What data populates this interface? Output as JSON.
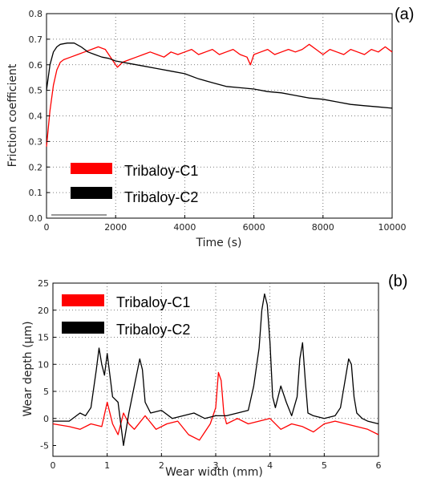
{
  "chart_data": [
    {
      "type": "line",
      "panel_label": "(a)",
      "xlabel": "Time (s)",
      "ylabel": "Friction coefficient",
      "xlim": [
        0,
        10000
      ],
      "ylim": [
        0,
        0.8
      ],
      "xticks": [
        0,
        2000,
        4000,
        6000,
        8000,
        10000
      ],
      "xtick_labels": [
        "0",
        "2000",
        "4000",
        "6000",
        "8000",
        "10000"
      ],
      "yticks": [
        0,
        0.1,
        0.2,
        0.3,
        0.4,
        0.5,
        0.6,
        0.7,
        0.8
      ],
      "ytick_labels": [
        "0.0",
        "0.1",
        "0.2",
        "0.3",
        "0.4",
        "0.5",
        "0.6",
        "0.7",
        "0.8"
      ],
      "grid": true,
      "legend_position": "lower-left",
      "series": [
        {
          "name": "Tribaloy-C1",
          "color": "#ff0000",
          "x": [
            0,
            100,
            200,
            300,
            400,
            500,
            700,
            900,
            1100,
            1300,
            1500,
            1700,
            1900,
            2050,
            2200,
            2400,
            2600,
            2800,
            3000,
            3200,
            3400,
            3600,
            3800,
            4000,
            4200,
            4400,
            4600,
            4800,
            5000,
            5200,
            5400,
            5600,
            5800,
            5900,
            6000,
            6200,
            6400,
            6600,
            6800,
            7000,
            7200,
            7400,
            7600,
            7800,
            8000,
            8200,
            8400,
            8600,
            8800,
            9000,
            9200,
            9400,
            9600,
            9800,
            10000
          ],
          "y": [
            0.28,
            0.42,
            0.52,
            0.58,
            0.61,
            0.62,
            0.63,
            0.64,
            0.65,
            0.66,
            0.67,
            0.66,
            0.62,
            0.59,
            0.61,
            0.62,
            0.63,
            0.64,
            0.65,
            0.64,
            0.63,
            0.65,
            0.64,
            0.65,
            0.66,
            0.64,
            0.65,
            0.66,
            0.64,
            0.65,
            0.66,
            0.64,
            0.63,
            0.6,
            0.64,
            0.65,
            0.66,
            0.64,
            0.65,
            0.66,
            0.65,
            0.66,
            0.68,
            0.66,
            0.64,
            0.66,
            0.65,
            0.64,
            0.66,
            0.65,
            0.64,
            0.66,
            0.65,
            0.67,
            0.65
          ]
        },
        {
          "name": "Tribaloy-C2",
          "color": "#000000",
          "x": [
            0,
            100,
            200,
            300,
            400,
            600,
            800,
            1000,
            1200,
            1400,
            1600,
            1800,
            2000,
            2400,
            2800,
            3200,
            3600,
            4000,
            4400,
            4800,
            5200,
            5600,
            6000,
            6400,
            6800,
            7200,
            7600,
            8000,
            8400,
            8800,
            9200,
            9600,
            10000
          ],
          "y": [
            0.5,
            0.6,
            0.65,
            0.67,
            0.68,
            0.685,
            0.685,
            0.67,
            0.65,
            0.64,
            0.63,
            0.625,
            0.615,
            0.605,
            0.595,
            0.585,
            0.575,
            0.565,
            0.545,
            0.53,
            0.515,
            0.51,
            0.505,
            0.495,
            0.49,
            0.48,
            0.47,
            0.465,
            0.455,
            0.445,
            0.44,
            0.435,
            0.43
          ]
        }
      ]
    },
    {
      "type": "line",
      "panel_label": "(b)",
      "xlabel": "Wear width (mm)",
      "ylabel": "Wear depth (µm)",
      "xlim": [
        0,
        6
      ],
      "ylim": [
        -7,
        25
      ],
      "xticks": [
        0,
        1,
        2,
        3,
        4,
        5,
        6
      ],
      "xtick_labels": [
        "0",
        "1",
        "2",
        "3",
        "4",
        "5",
        "6"
      ],
      "yticks": [
        -5,
        0,
        5,
        10,
        15,
        20,
        25
      ],
      "ytick_labels": [
        "-5",
        "0",
        "5",
        "10",
        "15",
        "20",
        "25"
      ],
      "grid": true,
      "legend_position": "top-left",
      "series": [
        {
          "name": "Tribaloy-C1",
          "color": "#ff0000",
          "x": [
            0,
            0.3,
            0.5,
            0.7,
            0.9,
            1.0,
            1.1,
            1.2,
            1.3,
            1.4,
            1.5,
            1.7,
            1.9,
            2.1,
            2.3,
            2.5,
            2.7,
            2.9,
            3.0,
            3.05,
            3.1,
            3.15,
            3.2,
            3.4,
            3.6,
            3.8,
            4.0,
            4.2,
            4.4,
            4.6,
            4.8,
            5.0,
            5.2,
            5.4,
            5.6,
            5.8,
            6.0
          ],
          "y": [
            -1,
            -1.5,
            -2,
            -1,
            -1.5,
            3,
            -1,
            -3,
            1,
            -1,
            -2,
            0.5,
            -2,
            -1,
            -0.5,
            -3,
            -4,
            -1,
            2,
            8.5,
            7,
            1,
            -1,
            0,
            -1,
            -0.5,
            0,
            -2,
            -1,
            -1.5,
            -2.5,
            -1,
            -0.5,
            -1,
            -1.5,
            -2,
            -3
          ]
        },
        {
          "name": "Tribaloy-C2",
          "color": "#000000",
          "x": [
            0,
            0.3,
            0.5,
            0.6,
            0.7,
            0.8,
            0.85,
            0.9,
            0.95,
            1.0,
            1.1,
            1.2,
            1.25,
            1.3,
            1.4,
            1.5,
            1.6,
            1.65,
            1.7,
            1.8,
            2.0,
            2.2,
            2.4,
            2.6,
            2.8,
            3.0,
            3.2,
            3.4,
            3.6,
            3.7,
            3.8,
            3.85,
            3.9,
            3.95,
            4.0,
            4.05,
            4.1,
            4.2,
            4.3,
            4.4,
            4.5,
            4.55,
            4.6,
            4.65,
            4.7,
            4.8,
            5.0,
            5.2,
            5.3,
            5.4,
            5.45,
            5.5,
            5.55,
            5.6,
            5.7,
            5.8,
            6.0
          ],
          "y": [
            -0.5,
            -0.5,
            1,
            0.5,
            2,
            9,
            13,
            10,
            8,
            12,
            4,
            3,
            -1,
            -5,
            1,
            6,
            11,
            9,
            3,
            1,
            1.5,
            0,
            0.5,
            1,
            0,
            0.5,
            0.5,
            1,
            1.5,
            6,
            13,
            20,
            23,
            21,
            14,
            4,
            2,
            6,
            3,
            0.5,
            4,
            11,
            14,
            7,
            1,
            0.5,
            0,
            0.5,
            2,
            8,
            11,
            10,
            4,
            1,
            0,
            -0.5,
            -1
          ]
        }
      ]
    }
  ]
}
